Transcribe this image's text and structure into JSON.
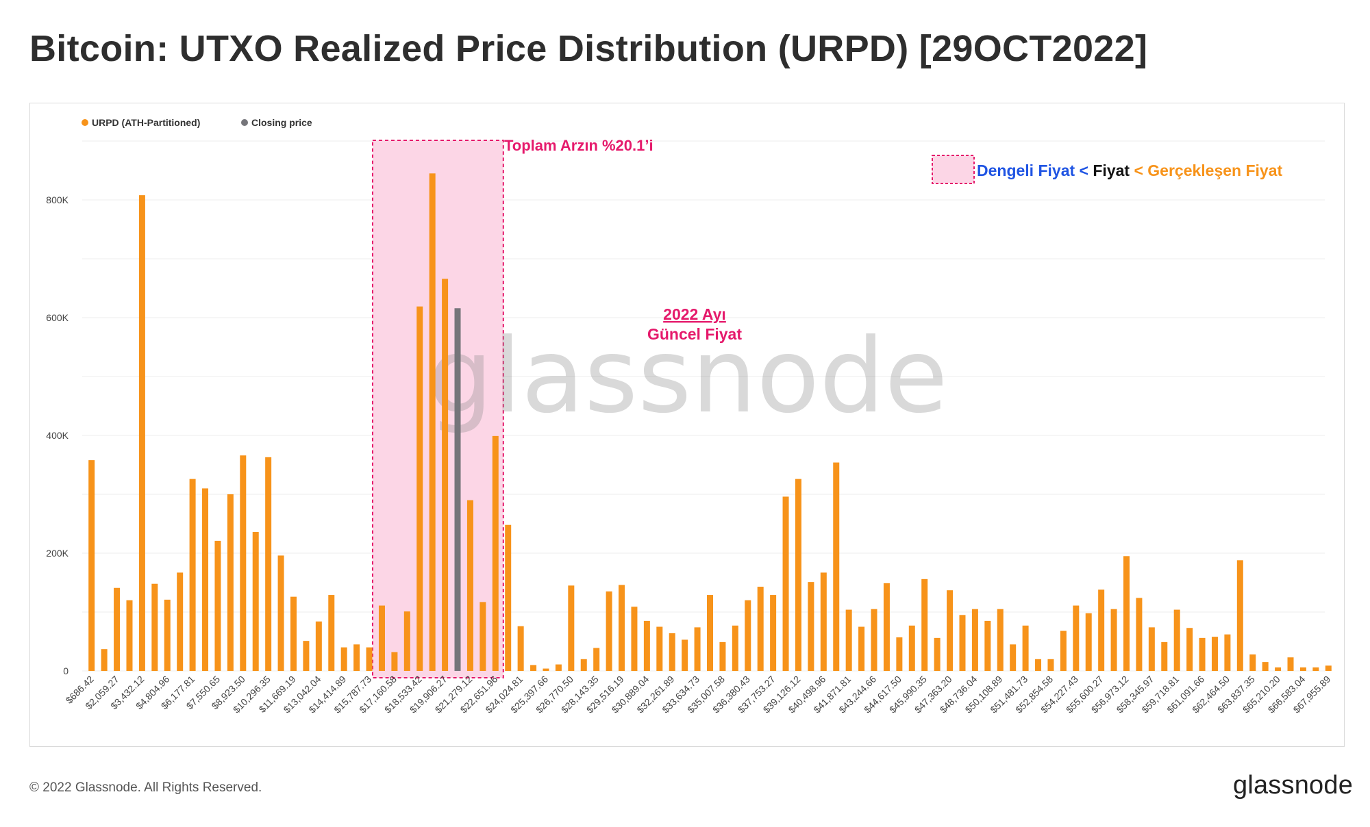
{
  "title": "Bitcoin: UTXO Realized Price Distribution (URPD) [29OCT2022]",
  "footer": {
    "copyright": "© 2022 Glassnode. All Rights Reserved.",
    "logo": "glassnode"
  },
  "watermark": "glassnode",
  "colors": {
    "bar": "#f7931a",
    "closing": "#75757a",
    "highlight_fill": "#fcd6e6",
    "highlight_border": "#e5196b",
    "annotation": "#e5196b",
    "blue": "#1f54e3",
    "orange": "#f7931a",
    "black": "#111111"
  },
  "annotations": {
    "supply_share": "Toplam Arzın %20.1’i",
    "current_price_line1": "2022 Ayı",
    "current_price_line2": "Güncel Fiyat",
    "legend_box": {
      "part1": "Dengeli Fiyat",
      "sep1": " < ",
      "part2": "Fiyat",
      "sep2": " < ",
      "part3": "Gerçekleşen Fiyat"
    }
  },
  "chart_data": {
    "type": "bar",
    "title": "",
    "xlabel": "",
    "ylabel": "",
    "ylim": [
      0,
      900000
    ],
    "yticks": [
      0,
      200000,
      400000,
      600000,
      800000
    ],
    "ytick_labels": [
      "0",
      "200K",
      "400K",
      "600K",
      "800K"
    ],
    "grid": "horizontal",
    "legend": {
      "placement": "top-left",
      "entries": [
        {
          "name": "URPD (ATH-Partitioned)",
          "color": "#f7931a"
        },
        {
          "name": "Closing price",
          "color": "#75757a"
        }
      ]
    },
    "xtick_labels": [
      "$686.42",
      "$2,059.27",
      "$3,432.12",
      "$4,804.96",
      "$6,177.81",
      "$7,550.65",
      "$8,923.50",
      "$10,296.35",
      "$11,669.19",
      "$13,042.04",
      "$14,414.89",
      "$15,787.73",
      "$17,160.58",
      "$18,533.42",
      "$19,906.27",
      "$21,279.12",
      "$22,651.96",
      "$24,024.81",
      "$25,397.66",
      "$26,770.50",
      "$28,143.35",
      "$29,516.19",
      "$30,889.04",
      "$32,261.89",
      "$33,634.73",
      "$35,007.58",
      "$36,380.43",
      "$37,753.27",
      "$39,126.12",
      "$40,498.96",
      "$41,871.81",
      "$43,244.66",
      "$44,617.50",
      "$45,990.35",
      "$47,363.20",
      "$48,736.04",
      "$50,108.89",
      "$51,481.73",
      "$52,854.58",
      "$54,227.43",
      "$55,600.27",
      "$56,973.12",
      "$58,345.97",
      "$59,718.81",
      "$61,091.66",
      "$62,464.50",
      "$63,837.35",
      "$65,210.20",
      "$66,583.04",
      "$67,955.89"
    ],
    "values": [
      358000,
      37000,
      141000,
      120000,
      808000,
      148000,
      121000,
      167000,
      326000,
      310000,
      221000,
      300000,
      366000,
      236000,
      363000,
      196000,
      126000,
      51000,
      84000,
      129000,
      40000,
      45000,
      40000,
      111000,
      32000,
      101000,
      619000,
      845000,
      666000,
      616000,
      290000,
      117000,
      399000,
      248000,
      76000,
      10000,
      4000,
      11000,
      145000,
      20000,
      39000,
      135000,
      146000,
      109000,
      85000,
      75000,
      64000,
      53000,
      74000,
      129000,
      49000,
      77000,
      120000,
      143000,
      129000,
      296000,
      326000,
      151000,
      167000,
      354000,
      104000,
      75000,
      105000,
      149000,
      57000,
      77000,
      156000,
      56000,
      137000,
      95000,
      105000,
      85000,
      105000,
      45000,
      77000,
      20000,
      20000,
      68000,
      111000,
      98000,
      138000,
      105000,
      195000,
      124000,
      74000,
      49000,
      104000,
      73000,
      56000,
      58000,
      62000,
      188000,
      28000,
      15000,
      6000,
      23000,
      6000,
      6000,
      9000
    ],
    "closing_price_index": 29,
    "highlight_range": [
      23,
      32
    ]
  }
}
